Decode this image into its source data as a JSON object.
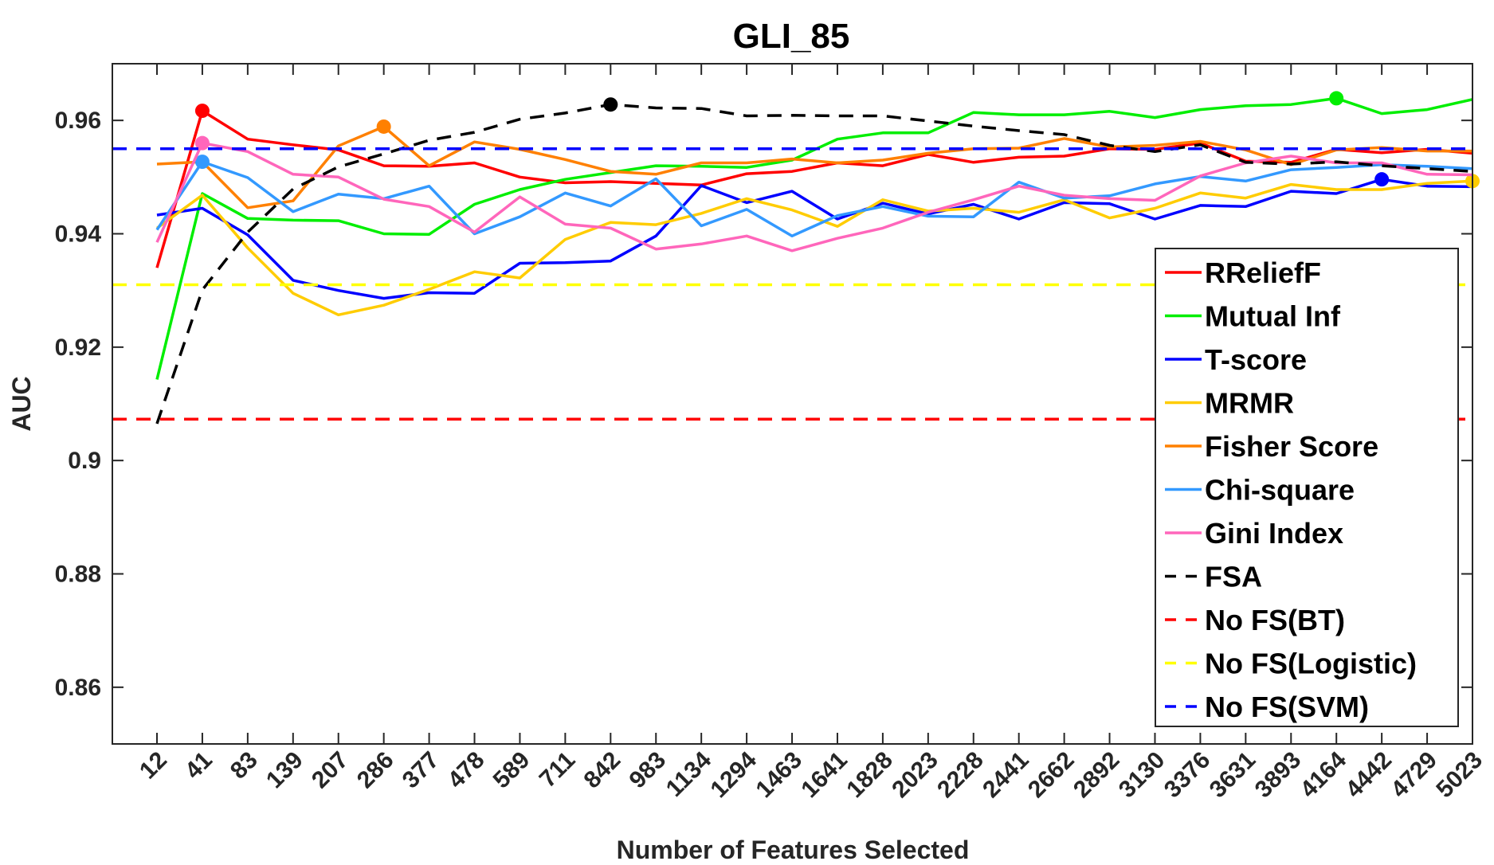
{
  "chart_data": {
    "type": "line",
    "title": "GLI_85",
    "xlabel": "Number of Features Selected",
    "ylabel": "AUC",
    "x": [
      12,
      41,
      83,
      139,
      207,
      286,
      377,
      478,
      589,
      711,
      842,
      983,
      1134,
      1294,
      1463,
      1641,
      1828,
      2023,
      2228,
      2441,
      2662,
      2892,
      3130,
      3376,
      3631,
      3893,
      4164,
      4442,
      4729,
      5023
    ],
    "ylim": [
      0.85,
      0.97
    ],
    "yticks": [
      0.86,
      0.88,
      0.9,
      0.92,
      0.94,
      0.96
    ],
    "ytick_labels": [
      "0.86",
      "0.88",
      "0.9",
      "0.92",
      "0.94",
      "0.96"
    ],
    "grid": false,
    "legend_position": "right",
    "series": [
      {
        "name": "RReliefF",
        "color": "#ff0000",
        "dash": "solid",
        "marker_index": 1,
        "values": [
          0.934,
          0.9617,
          0.9567,
          0.9557,
          0.9548,
          0.952,
          0.9519,
          0.9525,
          0.95,
          0.949,
          0.9492,
          0.9489,
          0.9486,
          0.9506,
          0.951,
          0.9525,
          0.952,
          0.954,
          0.9526,
          0.9535,
          0.9537,
          0.955,
          0.9549,
          0.956,
          0.9528,
          0.9526,
          0.9549,
          0.9543,
          0.9549,
          0.9542
        ]
      },
      {
        "name": "Mutual Inf",
        "color": "#00ee00",
        "dash": "solid",
        "marker_index": 26,
        "values": [
          0.9143,
          0.9471,
          0.9427,
          0.9424,
          0.9423,
          0.94,
          0.9399,
          0.9452,
          0.9478,
          0.9496,
          0.9508,
          0.952,
          0.9519,
          0.9517,
          0.953,
          0.9567,
          0.9578,
          0.9578,
          0.9614,
          0.961,
          0.961,
          0.9616,
          0.9605,
          0.9619,
          0.9626,
          0.9628,
          0.9639,
          0.9612,
          0.9619,
          0.9637
        ]
      },
      {
        "name": "T-score",
        "color": "#0000ff",
        "dash": "solid",
        "marker_index": 27,
        "values": [
          0.9433,
          0.9445,
          0.9398,
          0.9318,
          0.93,
          0.9286,
          0.9296,
          0.9295,
          0.9348,
          0.9349,
          0.9352,
          0.9396,
          0.9485,
          0.9455,
          0.9475,
          0.9426,
          0.9454,
          0.9435,
          0.9452,
          0.9426,
          0.9455,
          0.9453,
          0.9426,
          0.945,
          0.9448,
          0.9475,
          0.9471,
          0.9496,
          0.9484,
          0.9483
        ]
      },
      {
        "name": "MRMR",
        "color": "#ffcc00",
        "dash": "solid",
        "marker_index": 29,
        "values": [
          0.941,
          0.9468,
          0.9375,
          0.9295,
          0.9257,
          0.9274,
          0.9302,
          0.9333,
          0.9322,
          0.939,
          0.942,
          0.9416,
          0.9436,
          0.9462,
          0.9442,
          0.9413,
          0.946,
          0.944,
          0.9445,
          0.9438,
          0.946,
          0.9428,
          0.9445,
          0.9472,
          0.9463,
          0.9487,
          0.9478,
          0.9478,
          0.9489,
          0.9493
        ]
      },
      {
        "name": "Fisher Score",
        "color": "#ff8000",
        "dash": "solid",
        "marker_index": 5,
        "values": [
          0.9523,
          0.9527,
          0.9446,
          0.9458,
          0.9555,
          0.9589,
          0.952,
          0.9562,
          0.9549,
          0.9531,
          0.951,
          0.9505,
          0.9525,
          0.9525,
          0.9532,
          0.9525,
          0.953,
          0.9542,
          0.955,
          0.9551,
          0.9568,
          0.9553,
          0.9556,
          0.9563,
          0.9548,
          0.9522,
          0.9548,
          0.9552,
          0.9546,
          0.9546
        ]
      },
      {
        "name": "Chi-square",
        "color": "#3399ff",
        "dash": "solid",
        "marker_index": 1,
        "values": [
          0.9407,
          0.9527,
          0.9499,
          0.9439,
          0.947,
          0.9462,
          0.9484,
          0.94,
          0.943,
          0.9472,
          0.9449,
          0.9497,
          0.9414,
          0.9443,
          0.9396,
          0.9432,
          0.9448,
          0.9431,
          0.943,
          0.9491,
          0.9463,
          0.9467,
          0.9488,
          0.9501,
          0.9493,
          0.9513,
          0.9517,
          0.9522,
          0.9519,
          0.9515
        ]
      },
      {
        "name": "Gini Index",
        "color": "#ff66bb",
        "dash": "solid",
        "marker_index": 1,
        "values": [
          0.9385,
          0.956,
          0.9545,
          0.9505,
          0.95,
          0.9461,
          0.9448,
          0.9403,
          0.9465,
          0.9417,
          0.941,
          0.9373,
          0.9382,
          0.9396,
          0.937,
          0.9392,
          0.941,
          0.9438,
          0.946,
          0.9484,
          0.9468,
          0.9462,
          0.9459,
          0.9502,
          0.9525,
          0.9537,
          0.9525,
          0.9525,
          0.9505,
          0.9504
        ]
      },
      {
        "name": "FSA",
        "color": "#000000",
        "dash": "dashed",
        "marker_index": 10,
        "values": [
          0.9065,
          0.9301,
          0.9403,
          0.9479,
          0.9518,
          0.9541,
          0.9565,
          0.9579,
          0.9602,
          0.9613,
          0.9628,
          0.9622,
          0.9621,
          0.9608,
          0.9609,
          0.9608,
          0.9608,
          0.9599,
          0.959,
          0.9582,
          0.9575,
          0.9556,
          0.9545,
          0.9557,
          0.9526,
          0.9523,
          0.9527,
          0.952,
          0.9515,
          0.951
        ]
      },
      {
        "name": "No FS(BT)",
        "color": "#ff0000",
        "dash": "dashed",
        "constant": 0.9073
      },
      {
        "name": "No FS(Logistic)",
        "color": "#ffff00",
        "dash": "dashed",
        "constant": 0.931
      },
      {
        "name": "No FS(SVM)",
        "color": "#0000ff",
        "dash": "dashed",
        "constant": 0.955
      }
    ]
  }
}
